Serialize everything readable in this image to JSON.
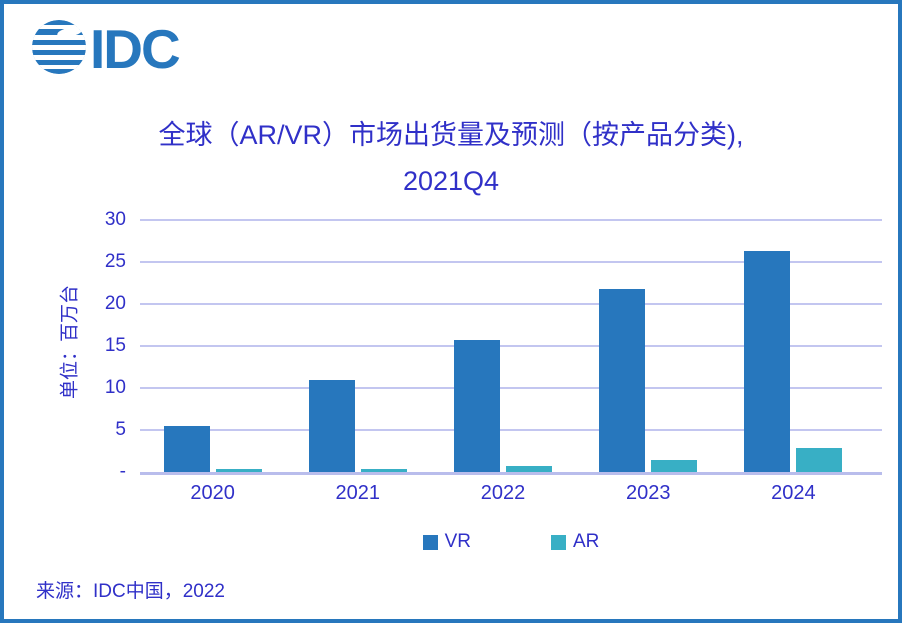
{
  "theme": {
    "accent_blue": "#2777BD",
    "teal": "#38AFC5",
    "text_indigo": "#3030C8",
    "gridline": "#C3C6F0",
    "baseline": "#B9BDEC",
    "background": "#FFFFFF"
  },
  "logo": {
    "text": "IDC",
    "color": "#2777BD"
  },
  "title": {
    "line1": "全球（AR/VR）市场出货量及预测（按产品分类),",
    "line2": "2021Q4"
  },
  "source": {
    "text": "来源：IDC中国，2022"
  },
  "chart_data": {
    "type": "bar",
    "title": "全球（AR/VR）市场出货量及预测（按产品分类), 2021Q4",
    "categories": [
      "2020",
      "2021",
      "2022",
      "2023",
      "2024"
    ],
    "series": [
      {
        "name": "VR",
        "color": "#2777BD",
        "values": [
          5.5,
          10.9,
          15.7,
          21.8,
          26.3
        ]
      },
      {
        "name": "AR",
        "color": "#38AFC5",
        "values": [
          0.3,
          0.3,
          0.7,
          1.4,
          2.9
        ]
      }
    ],
    "xlabel": "",
    "ylabel": "单位：百万台",
    "ylim": [
      0,
      30
    ],
    "yticks": [
      0,
      5,
      10,
      15,
      20,
      25,
      30
    ],
    "ytick_labels": [
      "-",
      "5",
      "10",
      "15",
      "20",
      "25",
      "30"
    ],
    "grid": true,
    "gridline_color": "#C3C6F0",
    "axis_text_color": "#3030C8",
    "legend_position": "bottom"
  }
}
